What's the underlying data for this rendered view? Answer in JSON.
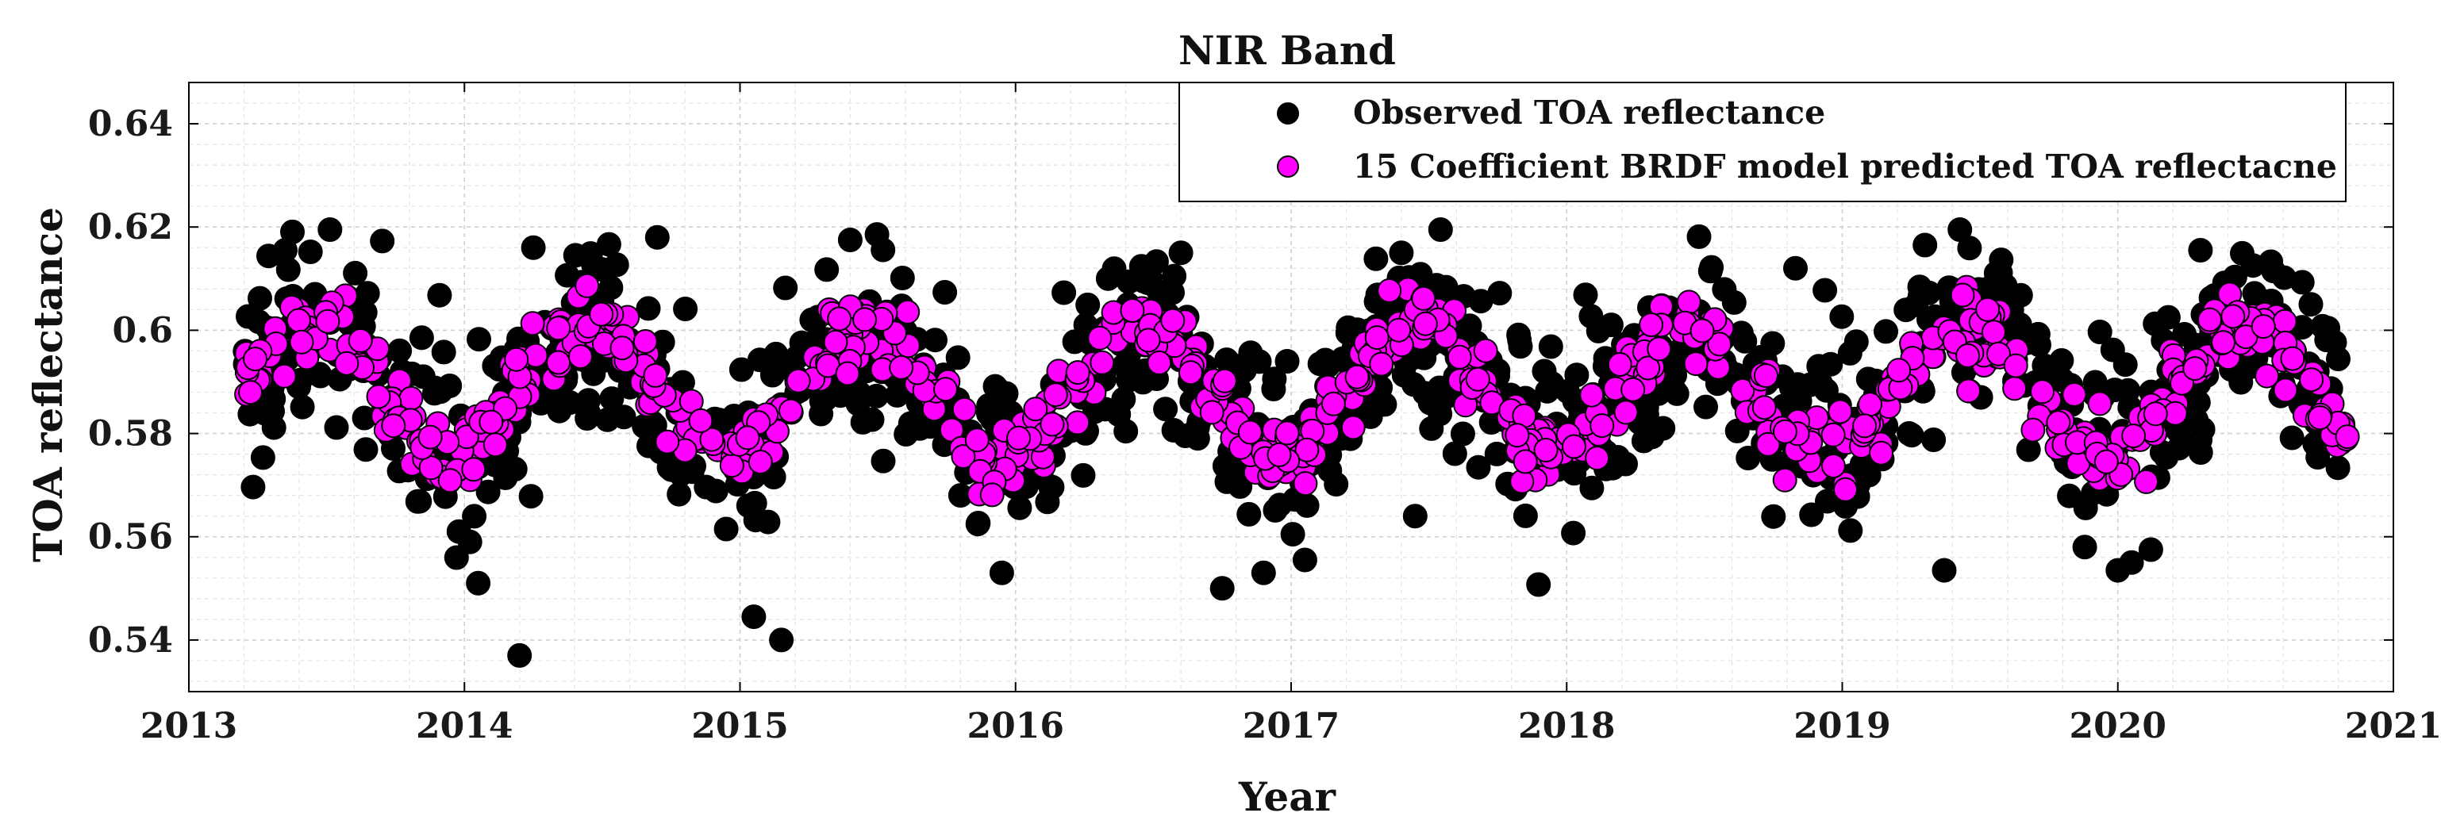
{
  "chart_data": {
    "type": "scatter",
    "title": "NIR  Band",
    "xlabel": "Year",
    "ylabel": "TOA reflectance",
    "xlim": [
      2013,
      2021
    ],
    "ylim": [
      0.53,
      0.648
    ],
    "xticks": [
      2013,
      2014,
      2015,
      2016,
      2017,
      2018,
      2019,
      2020,
      2021
    ],
    "xtick_labels": [
      "2013",
      "2014",
      "2015",
      "2016",
      "2017",
      "2018",
      "2019",
      "2020",
      "2021"
    ],
    "yticks": [
      0.54,
      0.56,
      0.58,
      0.6,
      0.62,
      0.64
    ],
    "ytick_labels": [
      "0.54",
      "0.56",
      "0.58",
      "0.6",
      "0.62",
      "0.64"
    ],
    "grid": true,
    "legend_location": "top-right",
    "series": [
      {
        "name": "Observed TOA reflectance",
        "color": "#000000",
        "marker": "circle",
        "x_start": 2013.2,
        "x_end": 2020.85,
        "count": 1150,
        "mean": 0.5887,
        "seasonal_amplitude": 0.011,
        "scatter_sd": 0.0085,
        "annual_peak_fraction": 0.45,
        "seed": 7,
        "outliers": [
          {
            "x": 2014.2,
            "y": 0.537
          },
          {
            "x": 2015.05,
            "y": 0.5445
          },
          {
            "x": 2015.15,
            "y": 0.54
          },
          {
            "x": 2014.05,
            "y": 0.551
          },
          {
            "x": 2013.98,
            "y": 0.561
          },
          {
            "x": 2014.02,
            "y": 0.559
          },
          {
            "x": 2015.95,
            "y": 0.553
          },
          {
            "x": 2016.75,
            "y": 0.55
          },
          {
            "x": 2016.9,
            "y": 0.553
          },
          {
            "x": 2017.05,
            "y": 0.5555
          },
          {
            "x": 2019.37,
            "y": 0.5535
          },
          {
            "x": 2019.88,
            "y": 0.558
          },
          {
            "x": 2020.0,
            "y": 0.5535
          },
          {
            "x": 2020.05,
            "y": 0.555
          },
          {
            "x": 2020.12,
            "y": 0.5575
          },
          {
            "x": 2014.25,
            "y": 0.616
          },
          {
            "x": 2014.7,
            "y": 0.618
          },
          {
            "x": 2015.4,
            "y": 0.6175
          },
          {
            "x": 2016.6,
            "y": 0.615
          },
          {
            "x": 2017.4,
            "y": 0.615
          },
          {
            "x": 2019.3,
            "y": 0.6165
          },
          {
            "x": 2020.3,
            "y": 0.6155
          },
          {
            "x": 2013.35,
            "y": 0.6155
          },
          {
            "x": 2018.83,
            "y": 0.612
          },
          {
            "x": 2014.95,
            "y": 0.5615
          },
          {
            "x": 2017.45,
            "y": 0.564
          }
        ]
      },
      {
        "name": "15 Coefficient BRDF model predicted TOA reflectacne",
        "color": "#ff00ff",
        "marker": "circle",
        "x_start": 2013.2,
        "x_end": 2020.85,
        "count": 760,
        "mean": 0.5885,
        "seasonal_amplitude": 0.0125,
        "scatter_sd": 0.0035,
        "annual_peak_fraction": 0.45,
        "seed": 13
      }
    ]
  }
}
